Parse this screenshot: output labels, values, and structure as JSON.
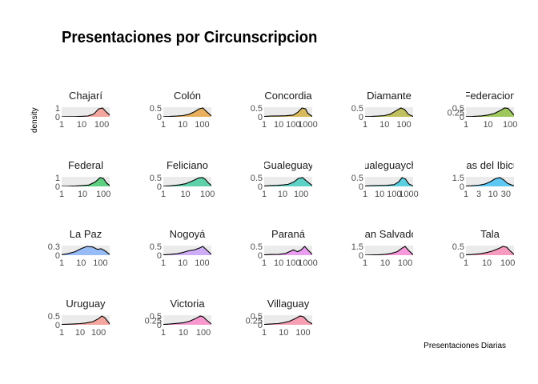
{
  "chart_data": {
    "type": "area",
    "title": "Presentaciones por Circunscripcion",
    "xlabel": "Presentaciones Diarias",
    "ylabel": "density",
    "x_scale": "log10",
    "grid": false,
    "legend": "none",
    "panels": [
      {
        "name": "Chajarí",
        "color": "#F8766D",
        "xlim": [
          1,
          250
        ],
        "x_ticks": [
          1,
          10,
          100
        ],
        "y_ticks": [
          0.0,
          1.0
        ],
        "density": {
          "x": [
            1,
            2,
            5,
            10,
            20,
            40,
            70,
            110,
            160,
            250
          ],
          "y": [
            0.01,
            0.02,
            0.03,
            0.05,
            0.09,
            0.3,
            0.9,
            1.0,
            0.6,
            0.2
          ]
        }
      },
      {
        "name": "Colón",
        "color": "#E58700",
        "xlim": [
          1,
          300
        ],
        "x_ticks": [
          1,
          10,
          100
        ],
        "y_ticks": [
          0.0,
          0.5
        ],
        "density": {
          "x": [
            1,
            2,
            5,
            10,
            20,
            40,
            70,
            110,
            170,
            300
          ],
          "y": [
            0.01,
            0.02,
            0.04,
            0.07,
            0.13,
            0.28,
            0.45,
            0.5,
            0.3,
            0.05
          ]
        }
      },
      {
        "name": "Concordia",
        "color": "#C99800",
        "xlim": [
          1,
          2000
        ],
        "x_ticks": [
          1,
          10,
          100,
          1000
        ],
        "y_ticks": [
          0.0,
          0.5
        ],
        "density": {
          "x": [
            1,
            3,
            10,
            30,
            100,
            200,
            400,
            700,
            1000,
            2000
          ],
          "y": [
            0.02,
            0.04,
            0.05,
            0.06,
            0.1,
            0.25,
            0.5,
            0.45,
            0.2,
            0.02
          ]
        }
      },
      {
        "name": "Diamante",
        "color": "#A3A500",
        "xlim": [
          1,
          300
        ],
        "x_ticks": [
          1,
          10,
          100
        ],
        "y_ticks": [
          0.0,
          0.5
        ],
        "density": {
          "x": [
            1,
            2,
            5,
            10,
            20,
            40,
            70,
            110,
            170,
            300
          ],
          "y": [
            0.01,
            0.02,
            0.04,
            0.07,
            0.15,
            0.35,
            0.5,
            0.42,
            0.15,
            0.02
          ]
        }
      },
      {
        "name": "Federacion",
        "color": "#6BB100",
        "xlim": [
          1,
          150
        ],
        "x_ticks": [
          1,
          10,
          100
        ],
        "y_ticks": [
          0.0,
          0.25,
          0.5
        ],
        "density": {
          "x": [
            1,
            2,
            5,
            10,
            20,
            35,
            55,
            80,
            110,
            150
          ],
          "y": [
            0.01,
            0.02,
            0.05,
            0.1,
            0.2,
            0.35,
            0.5,
            0.48,
            0.3,
            0.1
          ]
        }
      },
      {
        "name": "Federal",
        "color": "#00BA38",
        "xlim": [
          1,
          200
        ],
        "x_ticks": [
          1,
          10,
          100
        ],
        "y_ticks": [
          0.0,
          1.0
        ],
        "density": {
          "x": [
            1,
            2,
            5,
            10,
            20,
            40,
            70,
            100,
            140,
            200
          ],
          "y": [
            0.01,
            0.02,
            0.05,
            0.1,
            0.15,
            0.5,
            1.0,
            0.9,
            0.4,
            0.1
          ]
        }
      },
      {
        "name": "Feliciano",
        "color": "#00BF7D",
        "xlim": [
          1,
          150
        ],
        "x_ticks": [
          1,
          10,
          100
        ],
        "y_ticks": [
          0.0,
          0.5
        ],
        "density": {
          "x": [
            1,
            2,
            5,
            10,
            20,
            40,
            60,
            80,
            110,
            150
          ],
          "y": [
            0.01,
            0.03,
            0.08,
            0.15,
            0.3,
            0.48,
            0.5,
            0.4,
            0.2,
            0.05
          ]
        }
      },
      {
        "name": "Gualeguay",
        "color": "#00C0AF",
        "xlim": [
          1,
          400
        ],
        "x_ticks": [
          1,
          10,
          100
        ],
        "y_ticks": [
          0.0,
          0.5
        ],
        "density": {
          "x": [
            1,
            2,
            5,
            10,
            20,
            40,
            70,
            120,
            200,
            400
          ],
          "y": [
            0.02,
            0.04,
            0.06,
            0.08,
            0.12,
            0.25,
            0.45,
            0.5,
            0.3,
            0.05
          ]
        }
      },
      {
        "name": "Gualeguaychú",
        "color": "#00BCD8",
        "xlim": [
          1,
          2000
        ],
        "x_ticks": [
          1,
          10,
          100,
          1000
        ],
        "y_ticks": [
          0.0,
          0.5
        ],
        "density": {
          "x": [
            1,
            3,
            10,
            30,
            100,
            200,
            350,
            600,
            1000,
            2000
          ],
          "y": [
            0.02,
            0.04,
            0.05,
            0.06,
            0.1,
            0.25,
            0.5,
            0.42,
            0.15,
            0.02
          ]
        }
      },
      {
        "name": "Islas del Ibicuy",
        "color": "#00B0F6",
        "xlim": [
          1,
          60
        ],
        "x_ticks": [
          1,
          3,
          10,
          30
        ],
        "y_ticks": [
          0.0,
          1.5
        ],
        "density": {
          "x": [
            1,
            1.5,
            3,
            5,
            8,
            12,
            18,
            25,
            35,
            60
          ],
          "y": [
            0.05,
            0.1,
            0.2,
            0.4,
            0.8,
            1.3,
            1.5,
            1.1,
            0.5,
            0.1
          ]
        }
      },
      {
        "name": "La Paz",
        "color": "#619CFF",
        "xlim": [
          1,
          300
        ],
        "x_ticks": [
          1,
          10,
          100
        ],
        "y_ticks": [
          0.0,
          0.3
        ],
        "density": {
          "x": [
            1,
            2,
            5,
            10,
            20,
            40,
            70,
            110,
            170,
            300
          ],
          "y": [
            0.02,
            0.05,
            0.12,
            0.22,
            0.3,
            0.28,
            0.2,
            0.22,
            0.15,
            0.03
          ]
        }
      },
      {
        "name": "Nogoyá",
        "color": "#B983FF",
        "xlim": [
          1,
          300
        ],
        "x_ticks": [
          1,
          10,
          100
        ],
        "y_ticks": [
          0.0,
          0.5
        ],
        "density": {
          "x": [
            1,
            2,
            5,
            10,
            20,
            40,
            70,
            110,
            170,
            300
          ],
          "y": [
            0.02,
            0.04,
            0.08,
            0.15,
            0.25,
            0.3,
            0.4,
            0.5,
            0.3,
            0.05
          ]
        }
      },
      {
        "name": "Paraná",
        "color": "#E76BF3",
        "xlim": [
          1,
          2000
        ],
        "x_ticks": [
          1,
          10,
          100,
          1000
        ],
        "y_ticks": [
          0.0,
          0.5
        ],
        "density": {
          "x": [
            1,
            3,
            10,
            30,
            100,
            200,
            350,
            600,
            1000,
            2000
          ],
          "y": [
            0.02,
            0.04,
            0.05,
            0.1,
            0.3,
            0.2,
            0.3,
            0.5,
            0.3,
            0.05
          ]
        }
      },
      {
        "name": "San Salvador",
        "color": "#FD61D1",
        "xlim": [
          1,
          250
        ],
        "x_ticks": [
          1,
          10,
          100
        ],
        "y_ticks": [
          0.0,
          1.5
        ],
        "density": {
          "x": [
            1,
            2,
            5,
            10,
            20,
            40,
            70,
            100,
            150,
            250
          ],
          "y": [
            0.02,
            0.04,
            0.08,
            0.15,
            0.3,
            0.6,
            1.2,
            1.5,
            0.8,
            0.1
          ]
        }
      },
      {
        "name": "Tala",
        "color": "#FF67A4",
        "xlim": [
          1,
          200
        ],
        "x_ticks": [
          1,
          10,
          100
        ],
        "y_ticks": [
          0.0,
          0.5
        ],
        "density": {
          "x": [
            1,
            2,
            5,
            10,
            20,
            40,
            60,
            90,
            130,
            200
          ],
          "y": [
            0.02,
            0.04,
            0.08,
            0.15,
            0.25,
            0.4,
            0.5,
            0.45,
            0.25,
            0.05
          ]
        }
      },
      {
        "name": "Uruguay",
        "color": "#F8766D",
        "xlim": [
          1,
          400
        ],
        "x_ticks": [
          1,
          10,
          100
        ],
        "y_ticks": [
          0.0,
          0.5
        ],
        "density": {
          "x": [
            1,
            2,
            5,
            10,
            20,
            50,
            100,
            150,
            220,
            400
          ],
          "y": [
            0.02,
            0.03,
            0.05,
            0.07,
            0.1,
            0.18,
            0.35,
            0.5,
            0.4,
            0.05
          ]
        }
      },
      {
        "name": "Victoria",
        "color": "#FF62BC",
        "xlim": [
          1,
          250
        ],
        "x_ticks": [
          1,
          10,
          100
        ],
        "y_ticks": [
          0.0,
          0.25,
          0.5
        ],
        "density": {
          "x": [
            1,
            2,
            5,
            10,
            20,
            40,
            70,
            100,
            150,
            250
          ],
          "y": [
            0.02,
            0.04,
            0.08,
            0.12,
            0.2,
            0.35,
            0.5,
            0.45,
            0.25,
            0.05
          ]
        }
      },
      {
        "name": "Villaguay",
        "color": "#FF6C90",
        "xlim": [
          1,
          300
        ],
        "x_ticks": [
          1,
          10,
          100
        ],
        "y_ticks": [
          0.0,
          0.25,
          0.5
        ],
        "density": {
          "x": [
            1,
            2,
            5,
            10,
            20,
            40,
            70,
            110,
            170,
            300
          ],
          "y": [
            0.02,
            0.04,
            0.07,
            0.12,
            0.2,
            0.35,
            0.5,
            0.45,
            0.22,
            0.05
          ]
        }
      }
    ]
  }
}
